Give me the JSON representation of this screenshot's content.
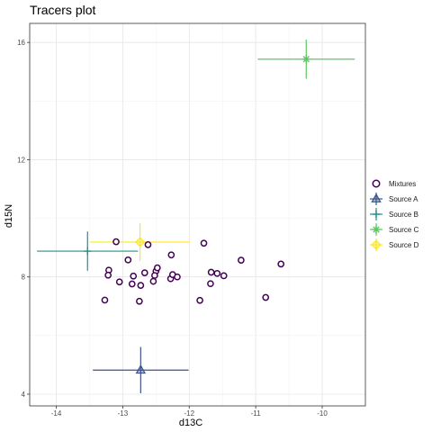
{
  "chart_data": {
    "type": "scatter",
    "title": "Tracers plot",
    "xlabel": "d13C",
    "ylabel": "d15N",
    "xlim": [
      -14.4,
      -9.35
    ],
    "ylim": [
      3.6,
      16.65
    ],
    "xticks": [
      -14,
      -13,
      -12,
      -11,
      -10
    ],
    "yticks": [
      4,
      8,
      12,
      16
    ],
    "xtick_labels": [
      "-14",
      "-13",
      "-12",
      "-11",
      "-10"
    ],
    "ytick_labels": [
      "4",
      "8",
      "12",
      "16"
    ],
    "grid": true,
    "legend_position": "right",
    "legend": [
      {
        "label": "Mixtures",
        "color": "#440154",
        "marker": "circle"
      },
      {
        "label": "Source A",
        "color": "#3b528b",
        "marker": "triangle"
      },
      {
        "label": "Source B",
        "color": "#21908c",
        "marker": "plus"
      },
      {
        "label": "Source C",
        "color": "#5dc863",
        "marker": "asterisk"
      },
      {
        "label": "Source D",
        "color": "#fde725",
        "marker": "diamond"
      }
    ],
    "mixtures": {
      "name": "Mixtures",
      "color": "#440154",
      "points": [
        [
          -13.1,
          9.2
        ],
        [
          -12.62,
          9.1
        ],
        [
          -11.78,
          9.15
        ],
        [
          -12.92,
          8.58
        ],
        [
          -12.27,
          8.75
        ],
        [
          -11.22,
          8.57
        ],
        [
          -10.62,
          8.44
        ],
        [
          -13.21,
          8.23
        ],
        [
          -13.22,
          8.06
        ],
        [
          -13.05,
          7.83
        ],
        [
          -12.84,
          8.03
        ],
        [
          -12.86,
          7.76
        ],
        [
          -12.73,
          7.71
        ],
        [
          -12.67,
          8.14
        ],
        [
          -12.5,
          8.2
        ],
        [
          -12.48,
          8.31
        ],
        [
          -12.52,
          8.05
        ],
        [
          -12.54,
          7.85
        ],
        [
          -12.28,
          7.94
        ],
        [
          -12.25,
          8.08
        ],
        [
          -12.18,
          8.0
        ],
        [
          -11.67,
          8.16
        ],
        [
          -11.58,
          8.12
        ],
        [
          -11.48,
          8.04
        ],
        [
          -11.68,
          7.77
        ],
        [
          -13.27,
          7.21
        ],
        [
          -12.75,
          7.17
        ],
        [
          -11.84,
          7.2
        ],
        [
          -10.85,
          7.3
        ]
      ]
    },
    "sources": [
      {
        "name": "Source A",
        "color": "#3b528b",
        "marker": "triangle",
        "mean_x": -12.73,
        "mean_y": 4.82,
        "sd_x": 0.72,
        "sd_y": 0.79
      },
      {
        "name": "Source B",
        "color": "#21908c",
        "marker": "plus",
        "mean_x": -13.53,
        "mean_y": 8.88,
        "sd_x": 0.76,
        "sd_y": 0.67
      },
      {
        "name": "Source C",
        "color": "#5dc863",
        "marker": "asterisk",
        "mean_x": -10.24,
        "mean_y": 15.43,
        "sd_x": 0.73,
        "sd_y": 0.67
      },
      {
        "name": "Source D",
        "color": "#fde725",
        "marker": "diamond",
        "mean_x": -12.74,
        "mean_y": 9.19,
        "sd_x": 0.75,
        "sd_y": 0.65
      }
    ]
  }
}
